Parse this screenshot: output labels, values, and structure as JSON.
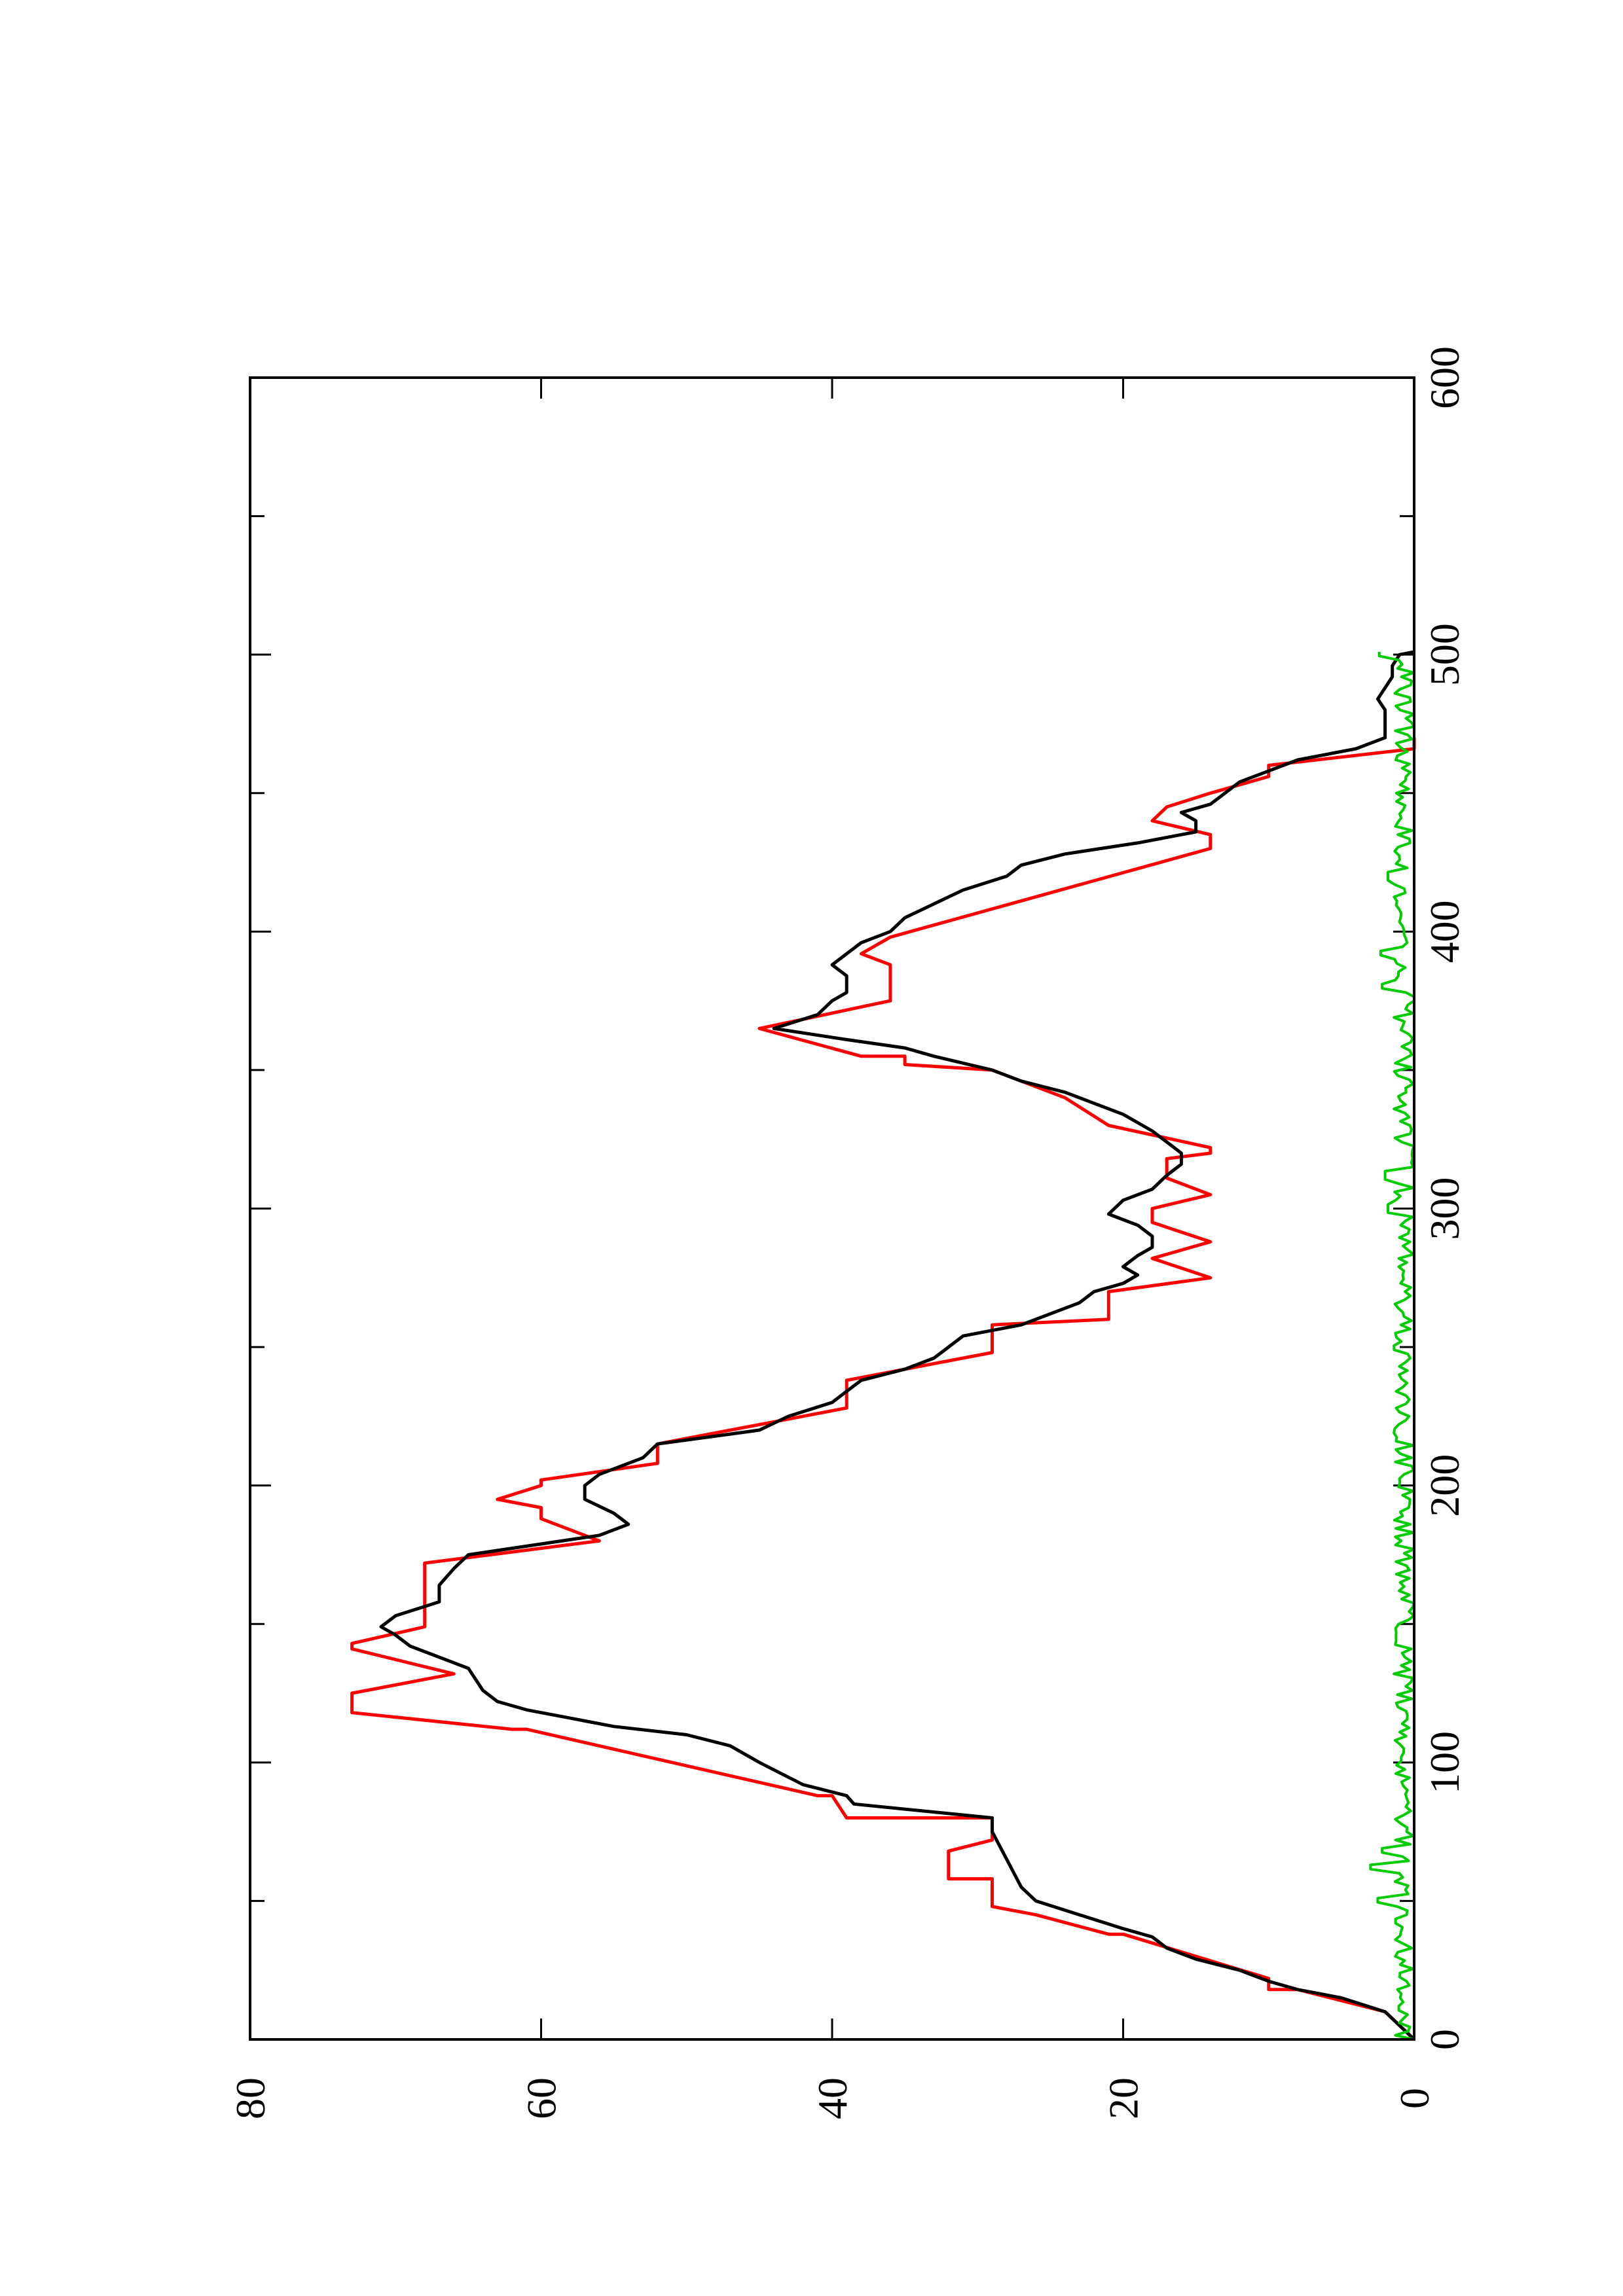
{
  "chart_data": {
    "type": "line",
    "orientation": "rotated 90° counter-clockwise (x axis runs bottom-to-top along the right edge, y axis runs right-to-left along the bottom edge)",
    "title": "",
    "xlabel": "",
    "ylabel": "",
    "xlim": [
      0,
      600
    ],
    "ylim": [
      0,
      80
    ],
    "x_major_ticks": [
      0,
      100,
      200,
      300,
      400,
      500,
      600
    ],
    "x_minor_ticks": [
      50,
      150,
      250,
      350,
      450,
      550
    ],
    "y_major_ticks": [
      0,
      20,
      40,
      60,
      80
    ],
    "x_tick_labels": [
      "0",
      "100",
      "200",
      "300",
      "400",
      "500",
      "600"
    ],
    "y_tick_labels": [
      "0",
      "20",
      "40",
      "60",
      "80"
    ],
    "grid": false,
    "legend": "none",
    "series": [
      {
        "color": "#ff0000",
        "style": "step",
        "points": [
          [
            0,
            0
          ],
          [
            10,
            2
          ],
          [
            18,
            8
          ],
          [
            18,
            10
          ],
          [
            22,
            10
          ],
          [
            38,
            20
          ],
          [
            38,
            21
          ],
          [
            45,
            26
          ],
          [
            48,
            29
          ],
          [
            58,
            29
          ],
          [
            58,
            32
          ],
          [
            68,
            32
          ],
          [
            72,
            29
          ],
          [
            80,
            29
          ],
          [
            80,
            39
          ],
          [
            88,
            40
          ],
          [
            88,
            41
          ],
          [
            112,
            61
          ],
          [
            112,
            62
          ],
          [
            118,
            73
          ],
          [
            125,
            73
          ],
          [
            132,
            66
          ],
          [
            141,
            73
          ],
          [
            143,
            73
          ],
          [
            149,
            68
          ],
          [
            172,
            68
          ],
          [
            180,
            56
          ],
          [
            188,
            60
          ],
          [
            192,
            60
          ],
          [
            195,
            63
          ],
          [
            200,
            60
          ],
          [
            202,
            60
          ],
          [
            208,
            52
          ],
          [
            215,
            52
          ],
          [
            225,
            42
          ],
          [
            228,
            39
          ],
          [
            238,
            39
          ],
          [
            248,
            29
          ],
          [
            258,
            29
          ],
          [
            260,
            21
          ],
          [
            270,
            21
          ],
          [
            275,
            14
          ],
          [
            282,
            18
          ],
          [
            288,
            14
          ],
          [
            295,
            18
          ],
          [
            300,
            18
          ],
          [
            305,
            14
          ],
          [
            311,
            17
          ],
          [
            318,
            17
          ],
          [
            320,
            14
          ],
          [
            322,
            14
          ],
          [
            330,
            21
          ],
          [
            340,
            24
          ],
          [
            350,
            29
          ],
          [
            352,
            35
          ],
          [
            355,
            35
          ],
          [
            355,
            38
          ],
          [
            365,
            45
          ],
          [
            375,
            36
          ],
          [
            388,
            36
          ],
          [
            392,
            38
          ],
          [
            398,
            36
          ],
          [
            430,
            14
          ],
          [
            435,
            14
          ],
          [
            440,
            18
          ],
          [
            445,
            17
          ],
          [
            450,
            14
          ],
          [
            456,
            10
          ],
          [
            460,
            10
          ],
          [
            466,
            0
          ],
          [
            470,
            0
          ]
        ]
      },
      {
        "color": "#000000",
        "style": "line",
        "points": [
          [
            0,
            0
          ],
          [
            5,
            1
          ],
          [
            10,
            2
          ],
          [
            15,
            5
          ],
          [
            18,
            8
          ],
          [
            21,
            10
          ],
          [
            25,
            12
          ],
          [
            29,
            15
          ],
          [
            33,
            17
          ],
          [
            37,
            18
          ],
          [
            40,
            20
          ],
          [
            45,
            23
          ],
          [
            50,
            26
          ],
          [
            55,
            27
          ],
          [
            60,
            27.5
          ],
          [
            65,
            28
          ],
          [
            70,
            28.5
          ],
          [
            75,
            29
          ],
          [
            80,
            29
          ],
          [
            85,
            38.5
          ],
          [
            88,
            39
          ],
          [
            92,
            42
          ],
          [
            100,
            45
          ],
          [
            106,
            47
          ],
          [
            110,
            50
          ],
          [
            113,
            55
          ],
          [
            116,
            58
          ],
          [
            119,
            61
          ],
          [
            122,
            63
          ],
          [
            126,
            64
          ],
          [
            130,
            64.5
          ],
          [
            134,
            65
          ],
          [
            138,
            67
          ],
          [
            142,
            69
          ],
          [
            146,
            70
          ],
          [
            149,
            71
          ],
          [
            153,
            70
          ],
          [
            158,
            67
          ],
          [
            164,
            67
          ],
          [
            170,
            66
          ],
          [
            175,
            65
          ],
          [
            182,
            56
          ],
          [
            186,
            54
          ],
          [
            190,
            55
          ],
          [
            195,
            57
          ],
          [
            200,
            57
          ],
          [
            204,
            56
          ],
          [
            210,
            53
          ],
          [
            215,
            52
          ],
          [
            220,
            45
          ],
          [
            225,
            43
          ],
          [
            230,
            40
          ],
          [
            234,
            39
          ],
          [
            238,
            38
          ],
          [
            242,
            35
          ],
          [
            246,
            33
          ],
          [
            250,
            32
          ],
          [
            254,
            31
          ],
          [
            258,
            27
          ],
          [
            262,
            25
          ],
          [
            266,
            23
          ],
          [
            270,
            22
          ],
          [
            273,
            20
          ],
          [
            276,
            19
          ],
          [
            279,
            20
          ],
          [
            283,
            19
          ],
          [
            286,
            18
          ],
          [
            290,
            18
          ],
          [
            294,
            19
          ],
          [
            298,
            21
          ],
          [
            303,
            20
          ],
          [
            307,
            18
          ],
          [
            312,
            17
          ],
          [
            316,
            16
          ],
          [
            320,
            16
          ],
          [
            324,
            17
          ],
          [
            328,
            18
          ],
          [
            334,
            20
          ],
          [
            338,
            22
          ],
          [
            342,
            24
          ],
          [
            346,
            27
          ],
          [
            350,
            29
          ],
          [
            355,
            33
          ],
          [
            358,
            35
          ],
          [
            361,
            39
          ],
          [
            365,
            44
          ],
          [
            370,
            41
          ],
          [
            375,
            40
          ],
          [
            378,
            39
          ],
          [
            384,
            39
          ],
          [
            388,
            40
          ],
          [
            392,
            39
          ],
          [
            396,
            38
          ],
          [
            400,
            36
          ],
          [
            405,
            35
          ],
          [
            410,
            33
          ],
          [
            415,
            31
          ],
          [
            420,
            28
          ],
          [
            424,
            27
          ],
          [
            428,
            24
          ],
          [
            432,
            19
          ],
          [
            436,
            15
          ],
          [
            440,
            15
          ],
          [
            443,
            16
          ],
          [
            446,
            14
          ],
          [
            450,
            13
          ],
          [
            454,
            12
          ],
          [
            458,
            10
          ],
          [
            462,
            8
          ],
          [
            466,
            4
          ],
          [
            470,
            2
          ],
          [
            476,
            2
          ],
          [
            480,
            2
          ],
          [
            484,
            2.5
          ],
          [
            488,
            2
          ],
          [
            492,
            1.5
          ],
          [
            496,
            1.5
          ],
          [
            500,
            1
          ],
          [
            501,
            0
          ]
        ]
      },
      {
        "color": "#00cc00",
        "style": "noise",
        "x_range": [
          0,
          501
        ],
        "amplitude": [
          0,
          1.4
        ],
        "peaks": [
          [
            50,
            2.5
          ],
          [
            62,
            3
          ],
          [
            68,
            2.2
          ],
          [
            300,
            1.8
          ],
          [
            312,
            2
          ],
          [
            380,
            2.2
          ],
          [
            392,
            2.3
          ],
          [
            420,
            1.8
          ],
          [
            500,
            2.4
          ]
        ]
      }
    ]
  }
}
